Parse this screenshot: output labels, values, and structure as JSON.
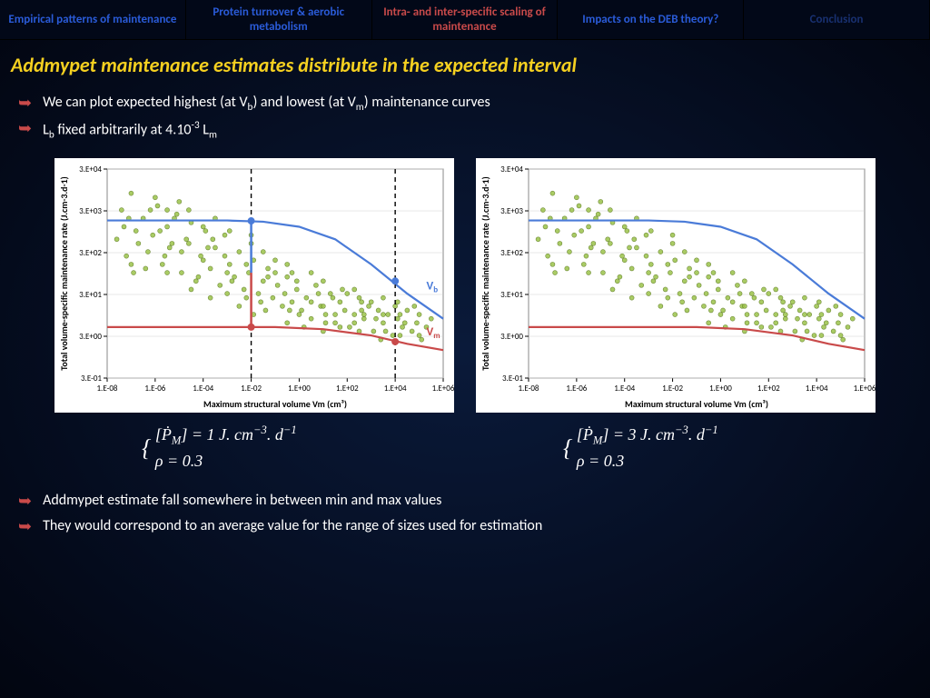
{
  "tabs": [
    {
      "label": "Empirical patterns of maintenance",
      "cls": "blue"
    },
    {
      "label": "Protein turnover & aerobic metabolism",
      "cls": "blue"
    },
    {
      "label": "Intra- and inter-specific scaling of maintenance",
      "cls": "red"
    },
    {
      "label": "Impacts on the DEB theory?",
      "cls": "blue"
    },
    {
      "label": "Conclusion",
      "cls": "dark"
    }
  ],
  "title": "Addmypet maintenance estimates distribute in the expected interval",
  "top_bullets": [
    {
      "html": "We can plot expected highest (at V<sub>b</sub>) and lowest (at V<sub>m</sub>) maintenance curves"
    },
    {
      "html": "L<sub>b</sub> fixed arbitrarily at  4.10<sup>-3</sup> L<sub>m</sub>"
    }
  ],
  "bottom_bullets": [
    {
      "html": "Addmypet estimate fall somewhere in between min and max values"
    },
    {
      "html": "They would correspond to an average value for the range of sizes used for estimation"
    }
  ],
  "chart": {
    "xlabel": "Maximum structural volume Vm (cm³)",
    "ylabel": "Total volume-specific maintenance rate (J.cm-3.d-1)",
    "x_ticks": [
      "1.E-08",
      "1.E-06",
      "1.E-04",
      "1.E-02",
      "1.E+00",
      "1.E+02",
      "1.E+04",
      "1.E+06"
    ],
    "y_ticks": [
      "3.E-01",
      "3.E+00",
      "3.E+01",
      "3.E+02",
      "3.E+03",
      "3.E+04"
    ],
    "x_range": [
      -8,
      6
    ],
    "y_range": [
      -0.52,
      4.48
    ],
    "vb_color": "#4a7bd8",
    "vm_color": "#c94a4a",
    "point_fill": "#9bc24a",
    "point_stroke": "#5a7a1a",
    "grid_color": "#d0d0d0",
    "vb_curve": [
      [
        -8,
        3.25
      ],
      [
        -5,
        3.25
      ],
      [
        -3,
        3.25
      ],
      [
        -1.5,
        3.22
      ],
      [
        0,
        3.1
      ],
      [
        1.5,
        2.8
      ],
      [
        3,
        2.2
      ],
      [
        4.5,
        1.5
      ],
      [
        6,
        0.9
      ]
    ],
    "vm_curve": [
      [
        -8,
        0.7
      ],
      [
        -4,
        0.7
      ],
      [
        -1,
        0.7
      ],
      [
        1,
        0.65
      ],
      [
        3,
        0.5
      ],
      [
        4.5,
        0.3
      ],
      [
        6,
        0.15
      ]
    ],
    "dashed_x": [
      -2,
      4
    ],
    "vb_label": "Vb",
    "vm_label": "Vm",
    "points": [
      [
        -7.6,
        2.8
      ],
      [
        -7.4,
        3.5
      ],
      [
        -7.2,
        2.4
      ],
      [
        -7.0,
        3.9
      ],
      [
        -6.8,
        3.0
      ],
      [
        -6.5,
        3.3
      ],
      [
        -6.3,
        2.5
      ],
      [
        -6.1,
        2.9
      ],
      [
        -5.9,
        3.6
      ],
      [
        -5.7,
        2.2
      ],
      [
        -5.5,
        3.1
      ],
      [
        -5.3,
        2.7
      ],
      [
        -5.1,
        3.4
      ],
      [
        -4.9,
        2.0
      ],
      [
        -4.7,
        2.8
      ],
      [
        -4.5,
        3.2
      ],
      [
        -4.3,
        1.8
      ],
      [
        -4.1,
        2.4
      ],
      [
        -3.9,
        3.0
      ],
      [
        -3.7,
        2.1
      ],
      [
        -3.5,
        2.6
      ],
      [
        -3.3,
        1.7
      ],
      [
        -3.1,
        2.9
      ],
      [
        -2.9,
        2.2
      ],
      [
        -2.7,
        1.9
      ],
      [
        -2.5,
        2.5
      ],
      [
        -2.3,
        1.6
      ],
      [
        -2.1,
        2.0
      ],
      [
        -1.9,
        2.3
      ],
      [
        -1.7,
        1.5
      ],
      [
        -1.5,
        1.8
      ],
      [
        -1.3,
        2.1
      ],
      [
        -1.1,
        1.4
      ],
      [
        -0.9,
        1.7
      ],
      [
        -0.7,
        1.2
      ],
      [
        -0.5,
        1.9
      ],
      [
        -0.3,
        1.3
      ],
      [
        -0.1,
        1.6
      ],
      [
        0.1,
        1.1
      ],
      [
        0.3,
        1.4
      ],
      [
        0.5,
        0.9
      ],
      [
        0.7,
        1.7
      ],
      [
        0.9,
        1.2
      ],
      [
        1.1,
        1.0
      ],
      [
        1.3,
        1.5
      ],
      [
        1.5,
        0.8
      ],
      [
        1.7,
        1.3
      ],
      [
        1.9,
        1.1
      ],
      [
        2.1,
        0.7
      ],
      [
        2.3,
        1.0
      ],
      [
        2.5,
        1.4
      ],
      [
        2.7,
        0.9
      ],
      [
        2.9,
        1.2
      ],
      [
        3.1,
        0.6
      ],
      [
        3.3,
        1.1
      ],
      [
        3.5,
        0.8
      ],
      [
        3.7,
        1.0
      ],
      [
        3.9,
        0.5
      ],
      [
        4.1,
        0.9
      ],
      [
        4.3,
        0.7
      ],
      [
        4.5,
        1.1
      ],
      [
        4.7,
        0.6
      ],
      [
        4.9,
        0.8
      ],
      [
        5.1,
        0.4
      ],
      [
        5.3,
        0.7
      ],
      [
        5.5,
        0.9
      ],
      [
        -6.0,
        3.8
      ],
      [
        -5.0,
        3.7
      ],
      [
        -4.0,
        2.3
      ],
      [
        -3.0,
        1.5
      ],
      [
        -2.0,
        2.7
      ],
      [
        -1.0,
        2.0
      ],
      [
        0.0,
        1.0
      ],
      [
        1.0,
        1.8
      ],
      [
        2.0,
        1.5
      ],
      [
        3.0,
        1.3
      ],
      [
        4.0,
        1.2
      ],
      [
        -5.5,
        2.0
      ],
      [
        -4.5,
        1.6
      ],
      [
        -3.5,
        3.3
      ],
      [
        -2.5,
        1.2
      ],
      [
        -1.5,
        2.5
      ],
      [
        -0.5,
        0.8
      ],
      [
        0.5,
        2.0
      ],
      [
        1.5,
        1.0
      ],
      [
        2.5,
        0.6
      ],
      [
        3.5,
        1.4
      ],
      [
        -7.0,
        2.2
      ],
      [
        -6.2,
        3.5
      ],
      [
        -5.4,
        2.6
      ],
      [
        -4.6,
        3.5
      ],
      [
        -3.8,
        2.6
      ],
      [
        -3.0,
        2.0
      ],
      [
        -2.2,
        1.4
      ],
      [
        -1.4,
        1.1
      ],
      [
        -0.6,
        1.5
      ],
      [
        0.2,
        0.7
      ],
      [
        1.0,
        0.6
      ],
      [
        1.8,
        1.6
      ],
      [
        2.6,
        1.1
      ],
      [
        3.4,
        0.4
      ],
      [
        4.2,
        0.5
      ],
      [
        5.0,
        1.0
      ],
      [
        -6.7,
        2.7
      ],
      [
        -5.8,
        3.0
      ],
      [
        -4.9,
        2.5
      ],
      [
        -4.0,
        3.1
      ],
      [
        -3.1,
        2.4
      ],
      [
        -2.2,
        2.2
      ],
      [
        -1.3,
        1.9
      ],
      [
        -0.4,
        1.1
      ],
      [
        0.5,
        1.3
      ],
      [
        1.4,
        1.4
      ],
      [
        2.3,
        0.8
      ],
      [
        3.2,
        0.9
      ],
      [
        4.1,
        1.3
      ],
      [
        5.0,
        0.5
      ],
      [
        -7.3,
        3.1
      ],
      [
        -6.4,
        2.1
      ],
      [
        -5.5,
        3.5
      ],
      [
        -4.6,
        2.7
      ],
      [
        -3.7,
        1.4
      ],
      [
        -2.8,
        1.8
      ],
      [
        -1.9,
        1.0
      ],
      [
        -1.0,
        2.3
      ],
      [
        -0.1,
        1.8
      ],
      [
        0.8,
        1.5
      ],
      [
        1.7,
        0.7
      ],
      [
        2.6,
        1.3
      ],
      [
        3.5,
        1.0
      ],
      [
        4.4,
        0.8
      ],
      [
        -7.1,
        3.3
      ],
      [
        -5.6,
        2.4
      ],
      [
        -4.2,
        1.9
      ],
      [
        -2.9,
        3.0
      ],
      [
        -1.6,
        1.3
      ],
      [
        -0.3,
        2.0
      ],
      [
        1.0,
        1.2
      ],
      [
        2.3,
        1.6
      ],
      [
        3.6,
        0.6
      ],
      [
        4.8,
        1.2
      ],
      [
        -6.9,
        2.0
      ],
      [
        -5.2,
        3.3
      ],
      [
        -3.6,
        2.8
      ],
      [
        -2.0,
        2.9
      ],
      [
        -0.5,
        2.2
      ],
      [
        1.1,
        0.8
      ],
      [
        2.7,
        1.0
      ],
      [
        4.2,
        1.0
      ]
    ]
  },
  "eq_left": {
    "l1": "[Ṗ<sub>M</sub>] = 1 J. <i>cm</i><sup>−3</sup>. <i>d</i><sup>−1</sup>",
    "l2": "ρ = 0.3"
  },
  "eq_right": {
    "l1": "[Ṗ<sub>M</sub>] = 3 J. <i>cm</i><sup>−3</sup>. <i>d</i><sup>−1</sup>",
    "l2": "ρ = 0.3"
  }
}
